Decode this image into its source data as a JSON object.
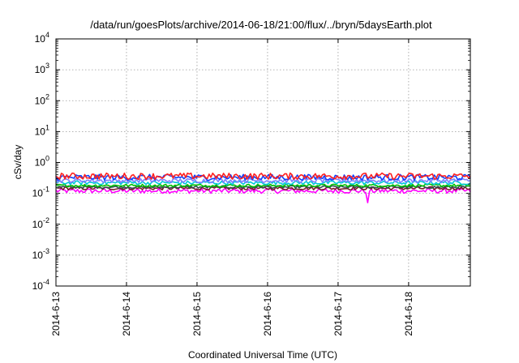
{
  "chart_data": {
    "type": "line",
    "title": "/data/run/goesPlots/archive/2014-06-18/21:00/flux/../bryn/5daysEarth.plot",
    "xlabel": "Coordinated Universal Time (UTC)",
    "ylabel": "cSv/day",
    "y_scale": "log",
    "ylim": [
      0.0001,
      10000
    ],
    "xlim": [
      "2014-06-13",
      "2014-06-18T21:00"
    ],
    "x_tick_labels": [
      "2014-6-13",
      "2014-6-14",
      "2014-6-15",
      "2014-6-16",
      "2014-6-17",
      "2014-6-18"
    ],
    "y_ticks": [
      {
        "value": 0.0001,
        "base": "10",
        "exp": "-4"
      },
      {
        "value": 0.001,
        "base": "10",
        "exp": "-3"
      },
      {
        "value": 0.01,
        "base": "10",
        "exp": "-2"
      },
      {
        "value": 0.1,
        "base": "10",
        "exp": "-1"
      },
      {
        "value": 1,
        "base": "10",
        "exp": "0"
      },
      {
        "value": 10,
        "base": "10",
        "exp": "1"
      },
      {
        "value": 100,
        "base": "10",
        "exp": "2"
      },
      {
        "value": 1000,
        "base": "10",
        "exp": "3"
      },
      {
        "value": 10000,
        "base": "10",
        "exp": "4"
      }
    ],
    "grid": true,
    "legend": "none",
    "series": [
      {
        "color": "#ff00ff",
        "level": 0.12,
        "jitter": 0.18,
        "dips": [
          {
            "x": "2014-06-17T10:00",
            "y": 0.05
          }
        ]
      },
      {
        "color": "#7a1f2b",
        "level": 0.145,
        "jitter": 0.12,
        "dips": []
      },
      {
        "color": "#2f4f4f",
        "level": 0.16,
        "jitter": 0.1,
        "dips": []
      },
      {
        "color": "#00c000",
        "level": 0.18,
        "jitter": 0.1,
        "dips": []
      },
      {
        "color": "#00c8d8",
        "level": 0.22,
        "jitter": 0.14,
        "dips": []
      },
      {
        "color": "#8080ff",
        "level": 0.26,
        "jitter": 0.16,
        "dips": []
      },
      {
        "color": "#1040ff",
        "level": 0.33,
        "jitter": 0.22,
        "dips": []
      },
      {
        "color": "#ff2020",
        "level": 0.36,
        "jitter": 0.24,
        "dips": []
      }
    ]
  }
}
